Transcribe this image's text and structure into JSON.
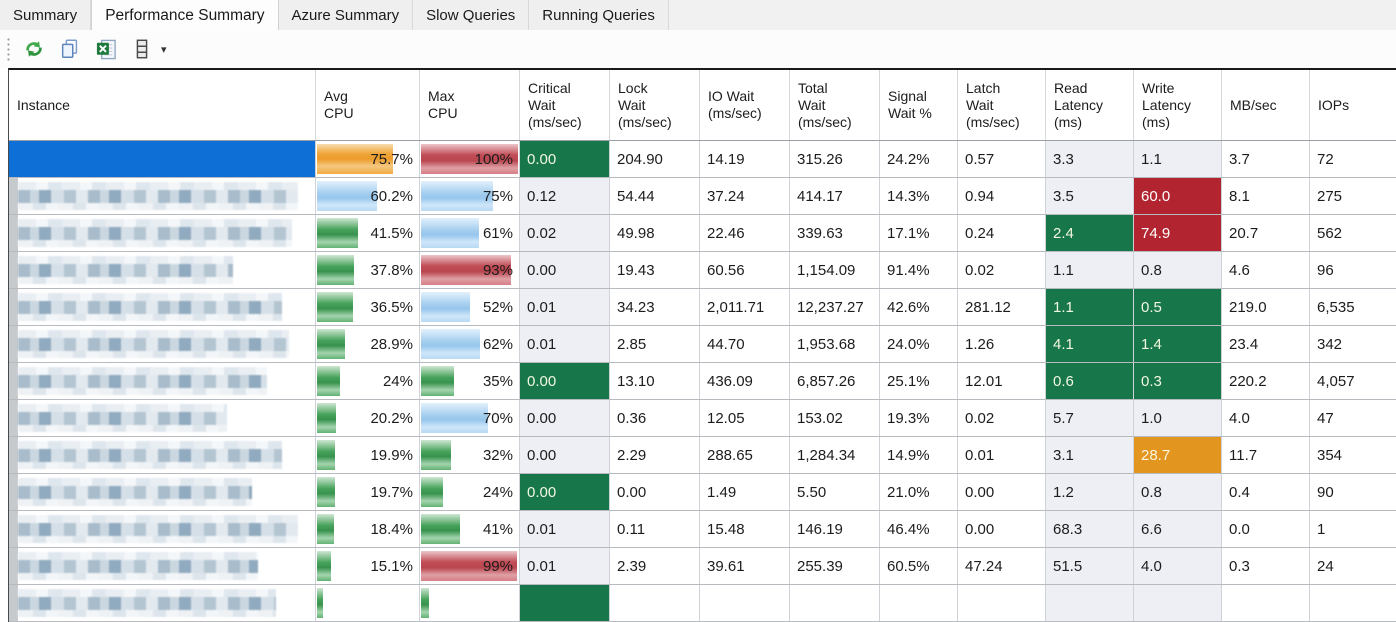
{
  "tabs": {
    "items": [
      {
        "label": "Summary",
        "active": false
      },
      {
        "label": "Performance Summary",
        "active": true
      },
      {
        "label": "Azure Summary",
        "active": false
      },
      {
        "label": "Slow Queries",
        "active": false
      },
      {
        "label": "Running Queries",
        "active": false
      }
    ]
  },
  "toolbar": {
    "buttons": [
      {
        "icon": "refresh-icon",
        "name": "refresh-button"
      },
      {
        "icon": "copy-icon",
        "name": "copy-button"
      },
      {
        "icon": "export-excel-icon",
        "name": "export-excel-button"
      },
      {
        "icon": "column-chooser-icon",
        "name": "column-chooser-button",
        "dropdown": true
      }
    ]
  },
  "colors": {
    "selection": "#0e6fd6",
    "cell_green": "#17774a",
    "cell_red": "#b22430",
    "cell_orange": "#e3961f",
    "column_shade": "#edeff4",
    "bar_orange": "#efa233",
    "bar_red": "#c24e58",
    "bar_blue": "#a6cfef",
    "bar_green": "#3f9e55"
  },
  "table": {
    "columns": [
      {
        "key": "instance",
        "label": "Instance"
      },
      {
        "key": "avg_cpu",
        "label": "Avg\nCPU"
      },
      {
        "key": "max_cpu",
        "label": "Max\nCPU"
      },
      {
        "key": "critical_wait",
        "label": "Critical\nWait\n(ms/sec)"
      },
      {
        "key": "lock_wait",
        "label": "Lock\nWait\n(ms/sec)"
      },
      {
        "key": "io_wait",
        "label": "IO Wait\n(ms/sec)"
      },
      {
        "key": "total_wait",
        "label": "Total\nWait\n(ms/sec)"
      },
      {
        "key": "signal_wait",
        "label": "Signal\nWait %"
      },
      {
        "key": "latch_wait",
        "label": "Latch\nWait\n(ms/sec)"
      },
      {
        "key": "read_latency",
        "label": "Read\nLatency\n(ms)"
      },
      {
        "key": "write_latency",
        "label": "Write\nLatency\n(ms)"
      },
      {
        "key": "mb_sec",
        "label": "MB/sec"
      },
      {
        "key": "iops",
        "label": "IOPs"
      }
    ],
    "rows": [
      {
        "selected": true,
        "instance_redacted": true,
        "redaction_width_pct": 100,
        "avg_cpu": {
          "text": "75.7%",
          "pct": 75.7,
          "bar": "orange"
        },
        "max_cpu": {
          "text": "100%",
          "pct": 100,
          "bar": "red"
        },
        "critical_wait": {
          "text": "0.00",
          "highlight": "green"
        },
        "lock_wait": "204.90",
        "io_wait": "14.19",
        "total_wait": "315.26",
        "signal_wait": "24.2%",
        "latch_wait": "0.57",
        "read_latency": {
          "text": "3.3",
          "highlight": ""
        },
        "write_latency": {
          "text": "1.1",
          "highlight": ""
        },
        "mb_sec": "3.7",
        "iops": "72"
      },
      {
        "selected": false,
        "instance_redacted": true,
        "redaction_width_pct": 95,
        "avg_cpu": {
          "text": "60.2%",
          "pct": 60.2,
          "bar": "blue"
        },
        "max_cpu": {
          "text": "75%",
          "pct": 75,
          "bar": "blue"
        },
        "critical_wait": {
          "text": "0.12",
          "highlight": ""
        },
        "lock_wait": "54.44",
        "io_wait": "37.24",
        "total_wait": "414.17",
        "signal_wait": "14.3%",
        "latch_wait": "0.94",
        "read_latency": {
          "text": "3.5",
          "highlight": ""
        },
        "write_latency": {
          "text": "60.0",
          "highlight": "red"
        },
        "mb_sec": "8.1",
        "iops": "275"
      },
      {
        "selected": false,
        "instance_redacted": true,
        "redaction_width_pct": 93,
        "avg_cpu": {
          "text": "41.5%",
          "pct": 41.5,
          "bar": "green"
        },
        "max_cpu": {
          "text": "61%",
          "pct": 61,
          "bar": "blue"
        },
        "critical_wait": {
          "text": "0.02",
          "highlight": ""
        },
        "lock_wait": "49.98",
        "io_wait": "22.46",
        "total_wait": "339.63",
        "signal_wait": "17.1%",
        "latch_wait": "0.24",
        "read_latency": {
          "text": "2.4",
          "highlight": "green"
        },
        "write_latency": {
          "text": "74.9",
          "highlight": "red"
        },
        "mb_sec": "20.7",
        "iops": "562"
      },
      {
        "selected": false,
        "instance_redacted": true,
        "redaction_width_pct": 74,
        "avg_cpu": {
          "text": "37.8%",
          "pct": 37.8,
          "bar": "green"
        },
        "max_cpu": {
          "text": "93%",
          "pct": 93,
          "bar": "red"
        },
        "critical_wait": {
          "text": "0.00",
          "highlight": ""
        },
        "lock_wait": "19.43",
        "io_wait": "60.56",
        "total_wait": "1,154.09",
        "signal_wait": "91.4%",
        "latch_wait": "0.02",
        "read_latency": {
          "text": "1.1",
          "highlight": ""
        },
        "write_latency": {
          "text": "0.8",
          "highlight": ""
        },
        "mb_sec": "4.6",
        "iops": "96"
      },
      {
        "selected": false,
        "instance_redacted": true,
        "redaction_width_pct": 90,
        "avg_cpu": {
          "text": "36.5%",
          "pct": 36.5,
          "bar": "green"
        },
        "max_cpu": {
          "text": "52%",
          "pct": 52,
          "bar": "blue"
        },
        "critical_wait": {
          "text": "0.01",
          "highlight": ""
        },
        "lock_wait": "34.23",
        "io_wait": "2,011.71",
        "total_wait": "12,237.27",
        "signal_wait": "42.6%",
        "latch_wait": "281.12",
        "read_latency": {
          "text": "1.1",
          "highlight": "green"
        },
        "write_latency": {
          "text": "0.5",
          "highlight": "green"
        },
        "mb_sec": "219.0",
        "iops": "6,535"
      },
      {
        "selected": false,
        "instance_redacted": true,
        "redaction_width_pct": 92,
        "avg_cpu": {
          "text": "28.9%",
          "pct": 28.9,
          "bar": "green"
        },
        "max_cpu": {
          "text": "62%",
          "pct": 62,
          "bar": "blue"
        },
        "critical_wait": {
          "text": "0.01",
          "highlight": ""
        },
        "lock_wait": "2.85",
        "io_wait": "44.70",
        "total_wait": "1,953.68",
        "signal_wait": "24.0%",
        "latch_wait": "1.26",
        "read_latency": {
          "text": "4.1",
          "highlight": "green"
        },
        "write_latency": {
          "text": "1.4",
          "highlight": "green"
        },
        "mb_sec": "23.4",
        "iops": "342"
      },
      {
        "selected": false,
        "instance_redacted": true,
        "redaction_width_pct": 85,
        "avg_cpu": {
          "text": "24%",
          "pct": 24,
          "bar": "green"
        },
        "max_cpu": {
          "text": "35%",
          "pct": 35,
          "bar": "green"
        },
        "critical_wait": {
          "text": "0.00",
          "highlight": "green"
        },
        "lock_wait": "13.10",
        "io_wait": "436.09",
        "total_wait": "6,857.26",
        "signal_wait": "25.1%",
        "latch_wait": "12.01",
        "read_latency": {
          "text": "0.6",
          "highlight": "green"
        },
        "write_latency": {
          "text": "0.3",
          "highlight": "green"
        },
        "mb_sec": "220.2",
        "iops": "4,057"
      },
      {
        "selected": false,
        "instance_redacted": true,
        "redaction_width_pct": 72,
        "avg_cpu": {
          "text": "20.2%",
          "pct": 20.2,
          "bar": "green"
        },
        "max_cpu": {
          "text": "70%",
          "pct": 70,
          "bar": "blue"
        },
        "critical_wait": {
          "text": "0.00",
          "highlight": ""
        },
        "lock_wait": "0.36",
        "io_wait": "12.05",
        "total_wait": "153.02",
        "signal_wait": "19.3%",
        "latch_wait": "0.02",
        "read_latency": {
          "text": "5.7",
          "highlight": ""
        },
        "write_latency": {
          "text": "1.0",
          "highlight": ""
        },
        "mb_sec": "4.0",
        "iops": "47"
      },
      {
        "selected": false,
        "instance_redacted": true,
        "redaction_width_pct": 90,
        "avg_cpu": {
          "text": "19.9%",
          "pct": 19.9,
          "bar": "green"
        },
        "max_cpu": {
          "text": "32%",
          "pct": 32,
          "bar": "green"
        },
        "critical_wait": {
          "text": "0.00",
          "highlight": ""
        },
        "lock_wait": "2.29",
        "io_wait": "288.65",
        "total_wait": "1,284.34",
        "signal_wait": "14.9%",
        "latch_wait": "0.01",
        "read_latency": {
          "text": "3.1",
          "highlight": ""
        },
        "write_latency": {
          "text": "28.7",
          "highlight": "orange"
        },
        "mb_sec": "11.7",
        "iops": "354"
      },
      {
        "selected": false,
        "instance_redacted": true,
        "redaction_width_pct": 80,
        "avg_cpu": {
          "text": "19.7%",
          "pct": 19.7,
          "bar": "green"
        },
        "max_cpu": {
          "text": "24%",
          "pct": 24,
          "bar": "green"
        },
        "critical_wait": {
          "text": "0.00",
          "highlight": "green"
        },
        "lock_wait": "0.00",
        "io_wait": "1.49",
        "total_wait": "5.50",
        "signal_wait": "21.0%",
        "latch_wait": "0.00",
        "read_latency": {
          "text": "1.2",
          "highlight": ""
        },
        "write_latency": {
          "text": "0.8",
          "highlight": ""
        },
        "mb_sec": "0.4",
        "iops": "90"
      },
      {
        "selected": false,
        "instance_redacted": true,
        "redaction_width_pct": 95,
        "avg_cpu": {
          "text": "18.4%",
          "pct": 18.4,
          "bar": "green"
        },
        "max_cpu": {
          "text": "41%",
          "pct": 41,
          "bar": "green"
        },
        "critical_wait": {
          "text": "0.01",
          "highlight": ""
        },
        "lock_wait": "0.11",
        "io_wait": "15.48",
        "total_wait": "146.19",
        "signal_wait": "46.4%",
        "latch_wait": "0.00",
        "read_latency": {
          "text": "68.3",
          "highlight": ""
        },
        "write_latency": {
          "text": "6.6",
          "highlight": ""
        },
        "mb_sec": "0.0",
        "iops": "1"
      },
      {
        "selected": false,
        "instance_redacted": true,
        "redaction_width_pct": 82,
        "avg_cpu": {
          "text": "15.1%",
          "pct": 15.1,
          "bar": "green"
        },
        "max_cpu": {
          "text": "99%",
          "pct": 99,
          "bar": "red"
        },
        "critical_wait": {
          "text": "0.01",
          "highlight": ""
        },
        "lock_wait": "2.39",
        "io_wait": "39.61",
        "total_wait": "255.39",
        "signal_wait": "60.5%",
        "latch_wait": "47.24",
        "read_latency": {
          "text": "51.5",
          "highlight": ""
        },
        "write_latency": {
          "text": "4.0",
          "highlight": ""
        },
        "mb_sec": "0.3",
        "iops": "24"
      },
      {
        "selected": false,
        "instance_redacted": true,
        "redaction_width_pct": 88,
        "avg_cpu": {
          "text": "",
          "pct": 8,
          "bar": "green"
        },
        "max_cpu": {
          "text": "",
          "pct": 10,
          "bar": "green"
        },
        "critical_wait": {
          "text": "",
          "highlight": "green"
        },
        "lock_wait": "",
        "io_wait": "",
        "total_wait": "",
        "signal_wait": "",
        "latch_wait": "",
        "read_latency": {
          "text": "",
          "highlight": ""
        },
        "write_latency": {
          "text": "",
          "highlight": ""
        },
        "mb_sec": "",
        "iops": ""
      }
    ]
  }
}
